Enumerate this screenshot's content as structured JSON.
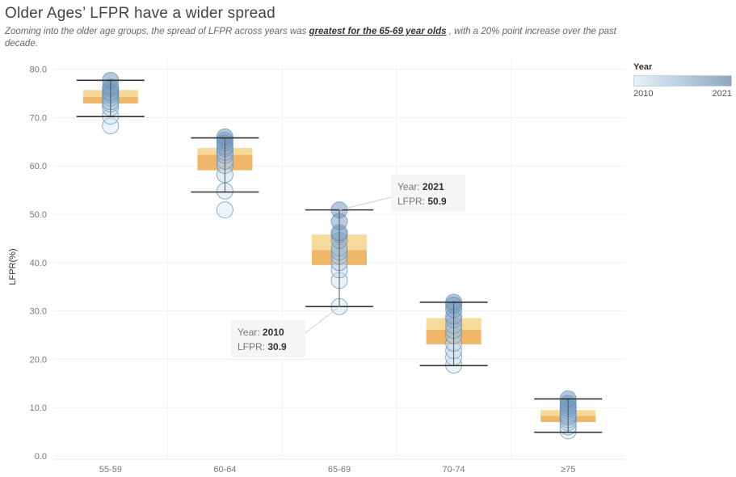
{
  "header": {
    "title": "Older Ages’ LFPR have a wider spread",
    "subtitle_before": "Zooming into the older age groups, the spread of LFPR  across years was ",
    "subtitle_emphasis": "greatest for the 65-69 year olds",
    "subtitle_after": " , with a 20% point increase over the past decade."
  },
  "legend": {
    "title": "Year",
    "min_label": "2010",
    "max_label": "2021",
    "color_low": "#e6f1fa",
    "color_high": "#8fa7bf"
  },
  "chart_data": {
    "type": "scatter",
    "subtype": "box-and-whisker with per-year circles",
    "ylabel": "LFPR(%)",
    "xlabel": "",
    "ylim": [
      0,
      82
    ],
    "yticks": [
      "0.0",
      "10.0",
      "20.0",
      "30.0",
      "40.0",
      "50.0",
      "60.0",
      "70.0",
      "80.0"
    ],
    "grid": true,
    "legend_position": "top-right",
    "categories": [
      "55-59",
      "60-64",
      "65-69",
      "70-74",
      "≥75"
    ],
    "colors": {
      "box_upper": "#f7d99a",
      "box_lower": "#eeb76a",
      "whisker": "#333333",
      "point_stroke": "#5d8fba"
    },
    "series": [
      {
        "category": "55-59",
        "min": 70.2,
        "q1": 72.9,
        "median": 74.3,
        "q3": 75.7,
        "max": 77.7,
        "points": [
          68.3,
          70.3,
          72.0,
          72.8,
          73.3,
          74.0,
          74.6,
          75.0,
          75.3,
          75.9,
          76.3,
          77.7
        ]
      },
      {
        "category": "60-64",
        "min": 54.6,
        "q1": 59.1,
        "median": 62.3,
        "q3": 63.7,
        "max": 65.8,
        "points": [
          50.9,
          54.8,
          58.2,
          60.1,
          61.0,
          62.2,
          62.8,
          63.6,
          64.0,
          64.7,
          65.3,
          66.0
        ]
      },
      {
        "category": "65-69",
        "min": 30.9,
        "q1": 39.5,
        "median": 42.6,
        "q3": 45.8,
        "max": 50.9,
        "points": [
          30.9,
          36.3,
          38.5,
          40.0,
          41.3,
          42.2,
          43.0,
          44.6,
          45.8,
          46.2,
          48.5,
          50.9
        ]
      },
      {
        "category": "70-74",
        "min": 18.7,
        "q1": 23.1,
        "median": 26.1,
        "q3": 28.5,
        "max": 31.8,
        "points": [
          18.8,
          20.4,
          21.8,
          23.3,
          24.9,
          26.0,
          27.0,
          28.2,
          28.9,
          30.3,
          31.2,
          31.8
        ]
      },
      {
        "category": "≥75",
        "min": 4.9,
        "q1": 7.0,
        "median": 8.3,
        "q3": 9.5,
        "max": 11.8,
        "points": [
          5.2,
          6.0,
          6.9,
          7.5,
          8.0,
          8.3,
          8.7,
          9.3,
          9.8,
          10.3,
          10.9,
          11.8
        ]
      }
    ],
    "annotations": [
      {
        "category": "65-69",
        "year_label": "Year:",
        "year": "2021",
        "value_label": "LFPR:",
        "value": "50.9",
        "y": 50.9
      },
      {
        "category": "65-69",
        "year_label": "Year:",
        "year": "2010",
        "value_label": "LFPR:",
        "value": "30.9",
        "y": 30.9
      }
    ]
  }
}
